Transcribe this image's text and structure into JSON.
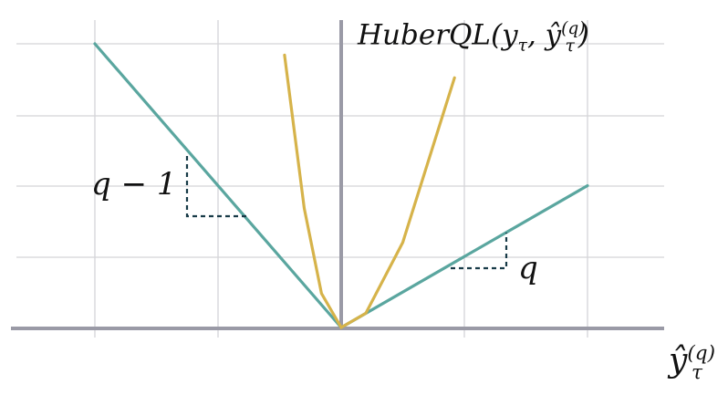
{
  "title": {
    "func": "HuberQL",
    "open": "(",
    "y": "y",
    "y_sub": "τ",
    "comma": ", ",
    "yhat": "ŷ",
    "yhat_sup": "(q)",
    "yhat_sub": "τ",
    "close": ")"
  },
  "x_axis_label": {
    "base": "ŷ",
    "sup": "(q)",
    "sub": "τ"
  },
  "slope_labels": {
    "left": "q − 1",
    "right": "q"
  },
  "colors": {
    "huber_quantile_loss": "#5aa69f",
    "squared_loss": "#d6b34a",
    "axis": "#9a9aa6",
    "grid": "#d4d4d8",
    "slope_marker": "#173a47"
  },
  "chart_data": {
    "type": "line",
    "grid": true,
    "series": [
      {
        "x": [
          -1.0,
          0.0,
          1.0
        ],
        "y": [
          1.0,
          0.0,
          0.5
        ]
      },
      {
        "x": [
          -0.23,
          -0.15,
          -0.08,
          0.0,
          0.1,
          0.25,
          0.46
        ],
        "y": [
          0.96,
          0.42,
          0.12,
          0.0,
          0.05,
          0.3,
          0.88
        ]
      }
    ]
  }
}
